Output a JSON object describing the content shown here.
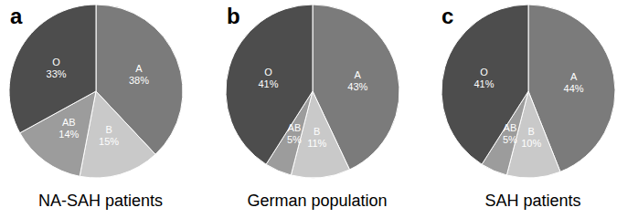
{
  "chart_data": [
    {
      "type": "pie",
      "title": "NA-SAH patients",
      "annotations": [
        "a"
      ],
      "categories": [
        "A",
        "B",
        "AB",
        "O"
      ],
      "values": [
        38,
        15,
        14,
        33
      ],
      "value_labels": [
        "38%",
        "15%",
        "14%",
        "33%"
      ],
      "colors": [
        "#7b7b7b",
        "#c9c9c9",
        "#9c9c9c",
        "#4d4d4d"
      ],
      "data_labels": true
    },
    {
      "type": "pie",
      "title": "German population",
      "annotations": [
        "b"
      ],
      "categories": [
        "A",
        "B",
        "AB",
        "O"
      ],
      "values": [
        43,
        11,
        5,
        41
      ],
      "value_labels": [
        "43%",
        "11%",
        "5%",
        "41%"
      ],
      "colors": [
        "#7b7b7b",
        "#c9c9c9",
        "#9c9c9c",
        "#4d4d4d"
      ],
      "data_labels": true
    },
    {
      "type": "pie",
      "title": "SAH patients",
      "annotations": [
        "c"
      ],
      "categories": [
        "A",
        "B",
        "AB",
        "O"
      ],
      "values": [
        44,
        10,
        5,
        41
      ],
      "value_labels": [
        "44%",
        "10%",
        "5%",
        "41%"
      ],
      "colors": [
        "#7b7b7b",
        "#c9c9c9",
        "#9c9c9c",
        "#4d4d4d"
      ],
      "data_labels": true
    }
  ]
}
